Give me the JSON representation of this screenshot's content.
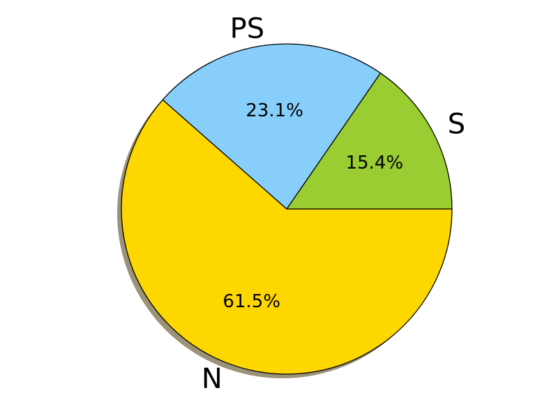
{
  "chart_data": {
    "type": "pie",
    "slices": [
      {
        "label": "S",
        "value": 15.4,
        "pct_label": "15.4%",
        "color": "#9ACD32"
      },
      {
        "label": "PS",
        "value": 23.1,
        "pct_label": "23.1%",
        "color": "#87CEFA"
      },
      {
        "label": "N",
        "value": 61.5,
        "pct_label": "61.5%",
        "color": "#FFD700"
      }
    ],
    "start_angle_deg": 0,
    "direction": "clockwise-on-screen",
    "shadow": true,
    "shadow_color": "#7a6e4a",
    "edge_color": "#000000"
  }
}
